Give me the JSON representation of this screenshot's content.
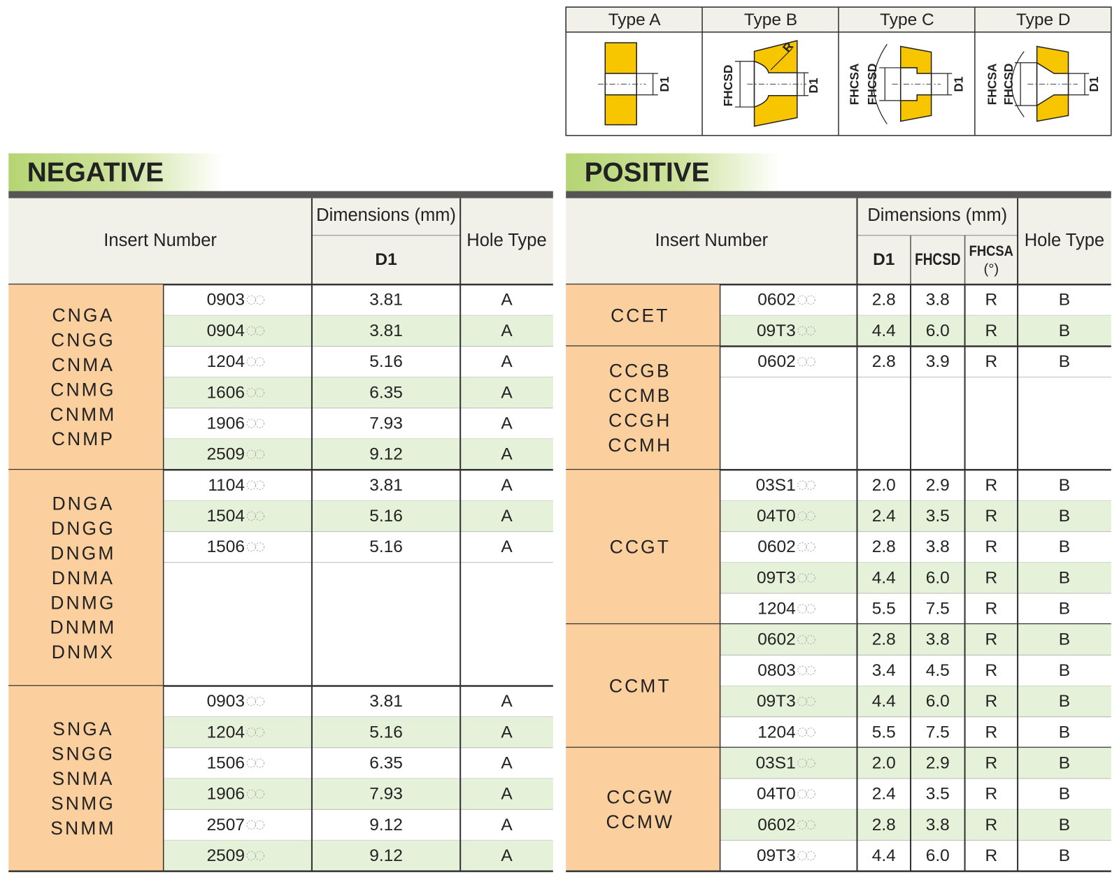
{
  "types": [
    {
      "name": "Type A",
      "labels": [
        "D1"
      ]
    },
    {
      "name": "Type B",
      "labels": [
        "FHCSD",
        "D1",
        "R"
      ]
    },
    {
      "name": "Type C",
      "labels": [
        "FHCSA",
        "FHCSD",
        "D1"
      ]
    },
    {
      "name": "Type D",
      "labels": [
        "FHCSA",
        "FHCSD",
        "D1"
      ]
    }
  ],
  "negative": {
    "title": "NEGATIVE",
    "headers": {
      "insert": "Insert Number",
      "dimensions": "Dimensions (mm)",
      "d1": "D1",
      "hole": "Hole Type"
    },
    "groups": [
      {
        "names": [
          "CNGA",
          "CNGG",
          "CNMA",
          "CNMG",
          "CNMM",
          "CNMP"
        ],
        "rows": [
          {
            "code": "0903",
            "d1": "3.81",
            "hole": "A",
            "shaded": false
          },
          {
            "code": "0904",
            "d1": "3.81",
            "hole": "A",
            "shaded": true
          },
          {
            "code": "1204",
            "d1": "5.16",
            "hole": "A",
            "shaded": false
          },
          {
            "code": "1606",
            "d1": "6.35",
            "hole": "A",
            "shaded": true
          },
          {
            "code": "1906",
            "d1": "7.93",
            "hole": "A",
            "shaded": false
          },
          {
            "code": "2509",
            "d1": "9.12",
            "hole": "A",
            "shaded": true
          }
        ]
      },
      {
        "names": [
          "DNGA",
          "DNGG",
          "DNGM",
          "DNMA",
          "DNMG",
          "DNMM",
          "DNMX"
        ],
        "rows": [
          {
            "code": "1104",
            "d1": "3.81",
            "hole": "A",
            "shaded": false
          },
          {
            "code": "1504",
            "d1": "5.16",
            "hole": "A",
            "shaded": true
          },
          {
            "code": "1506",
            "d1": "5.16",
            "hole": "A",
            "shaded": false
          }
        ]
      },
      {
        "names": [
          "SNGA",
          "SNGG",
          "SNMA",
          "SNMG",
          "SNMM"
        ],
        "rows": [
          {
            "code": "0903",
            "d1": "3.81",
            "hole": "A",
            "shaded": false
          },
          {
            "code": "1204",
            "d1": "5.16",
            "hole": "A",
            "shaded": true
          },
          {
            "code": "1506",
            "d1": "6.35",
            "hole": "A",
            "shaded": false
          },
          {
            "code": "1906",
            "d1": "7.93",
            "hole": "A",
            "shaded": true
          },
          {
            "code": "2507",
            "d1": "9.12",
            "hole": "A",
            "shaded": false
          },
          {
            "code": "2509",
            "d1": "9.12",
            "hole": "A",
            "shaded": true
          }
        ]
      }
    ]
  },
  "positive": {
    "title": "POSITIVE",
    "headers": {
      "insert": "Insert Number",
      "dimensions": "Dimensions (mm)",
      "d1": "D1",
      "fhcsd": "FHCSD",
      "fhcsa": "FHCSA",
      "fhcsa_unit": "(°)",
      "hole": "Hole Type"
    },
    "groups": [
      {
        "names": [
          "CCET"
        ],
        "rows": [
          {
            "code": "0602",
            "d1": "2.8",
            "fhcsd": "3.8",
            "fhcsa": "R",
            "hole": "B",
            "shaded": false
          },
          {
            "code": "09T3",
            "d1": "4.4",
            "fhcsd": "6.0",
            "fhcsa": "R",
            "hole": "B",
            "shaded": true
          }
        ]
      },
      {
        "names": [
          "CCGB",
          "CCMB",
          "CCGH",
          "CCMH"
        ],
        "rows": [
          {
            "code": "0602",
            "d1": "2.8",
            "fhcsd": "3.9",
            "fhcsa": "R",
            "hole": "B",
            "shaded": false
          }
        ]
      },
      {
        "names": [
          "CCGT"
        ],
        "rows": [
          {
            "code": "03S1",
            "d1": "2.0",
            "fhcsd": "2.9",
            "fhcsa": "R",
            "hole": "B",
            "shaded": false
          },
          {
            "code": "04T0",
            "d1": "2.4",
            "fhcsd": "3.5",
            "fhcsa": "R",
            "hole": "B",
            "shaded": true
          },
          {
            "code": "0602",
            "d1": "2.8",
            "fhcsd": "3.8",
            "fhcsa": "R",
            "hole": "B",
            "shaded": false
          },
          {
            "code": "09T3",
            "d1": "4.4",
            "fhcsd": "6.0",
            "fhcsa": "R",
            "hole": "B",
            "shaded": true
          },
          {
            "code": "1204",
            "d1": "5.5",
            "fhcsd": "7.5",
            "fhcsa": "R",
            "hole": "B",
            "shaded": false
          }
        ]
      },
      {
        "names": [
          "CCMT"
        ],
        "rows": [
          {
            "code": "0602",
            "d1": "2.8",
            "fhcsd": "3.8",
            "fhcsa": "R",
            "hole": "B",
            "shaded": true
          },
          {
            "code": "0803",
            "d1": "3.4",
            "fhcsd": "4.5",
            "fhcsa": "R",
            "hole": "B",
            "shaded": false
          },
          {
            "code": "09T3",
            "d1": "4.4",
            "fhcsd": "6.0",
            "fhcsa": "R",
            "hole": "B",
            "shaded": true
          },
          {
            "code": "1204",
            "d1": "5.5",
            "fhcsd": "7.5",
            "fhcsa": "R",
            "hole": "B",
            "shaded": false
          }
        ]
      },
      {
        "names": [
          "CCGW",
          "CCMW"
        ],
        "rows": [
          {
            "code": "03S1",
            "d1": "2.0",
            "fhcsd": "2.9",
            "fhcsa": "R",
            "hole": "B",
            "shaded": true
          },
          {
            "code": "04T0",
            "d1": "2.4",
            "fhcsd": "3.5",
            "fhcsa": "R",
            "hole": "B",
            "shaded": false
          },
          {
            "code": "0602",
            "d1": "2.8",
            "fhcsd": "3.8",
            "fhcsa": "R",
            "hole": "B",
            "shaded": true
          },
          {
            "code": "09T3",
            "d1": "4.4",
            "fhcsd": "6.0",
            "fhcsa": "R",
            "hole": "B",
            "shaded": false
          }
        ]
      }
    ]
  }
}
